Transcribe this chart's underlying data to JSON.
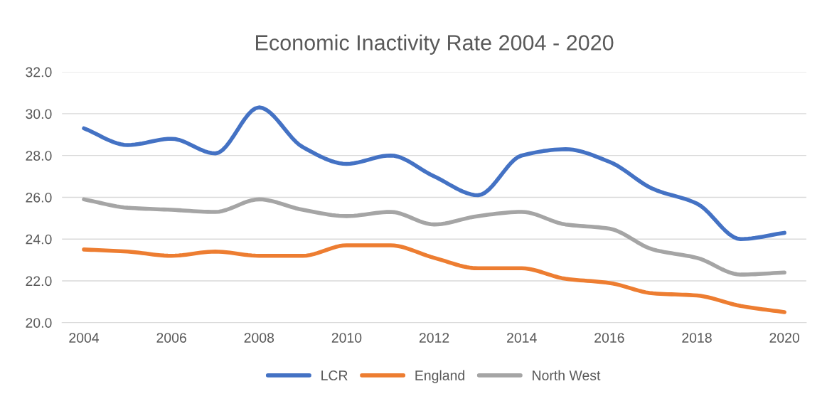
{
  "chart_data": {
    "type": "line",
    "title": "Economic Inactivity Rate 2004 - 2020",
    "x": [
      2004,
      2005,
      2006,
      2007,
      2008,
      2009,
      2010,
      2011,
      2012,
      2013,
      2014,
      2015,
      2016,
      2017,
      2018,
      2019,
      2020
    ],
    "series": [
      {
        "name": "LCR",
        "color": "#4472c4",
        "values": [
          29.3,
          28.5,
          28.8,
          28.1,
          30.3,
          28.4,
          27.6,
          28.0,
          27.0,
          26.1,
          28.0,
          28.3,
          27.7,
          26.4,
          25.7,
          24.0,
          24.3
        ]
      },
      {
        "name": "England",
        "color": "#ed7d31",
        "values": [
          23.5,
          23.4,
          23.2,
          23.4,
          23.2,
          23.2,
          23.7,
          23.7,
          23.1,
          22.6,
          22.6,
          22.1,
          21.9,
          21.4,
          21.3,
          20.8,
          20.5
        ]
      },
      {
        "name": "North West",
        "color": "#a5a5a5",
        "values": [
          25.9,
          25.5,
          25.4,
          25.3,
          25.9,
          25.4,
          25.1,
          25.3,
          24.7,
          25.1,
          25.3,
          24.7,
          24.5,
          23.5,
          23.1,
          22.3,
          22.4
        ]
      }
    ],
    "xlim": [
      2003.5,
      2020.5
    ],
    "xticks": [
      2004,
      2006,
      2008,
      2010,
      2012,
      2014,
      2016,
      2018,
      2020
    ],
    "ylim": [
      20,
      32
    ],
    "yticks": [
      {
        "value": 20,
        "label": "20.0"
      },
      {
        "value": 22,
        "label": "22.0"
      },
      {
        "value": 24,
        "label": "24.0"
      },
      {
        "value": 26,
        "label": "26.0"
      },
      {
        "value": 28,
        "label": "28.0"
      },
      {
        "value": 30,
        "label": "30.0"
      },
      {
        "value": 32,
        "label": "32.0"
      }
    ],
    "grid": "y",
    "legend": "bottom",
    "marker": "none",
    "line_style": "solid"
  }
}
